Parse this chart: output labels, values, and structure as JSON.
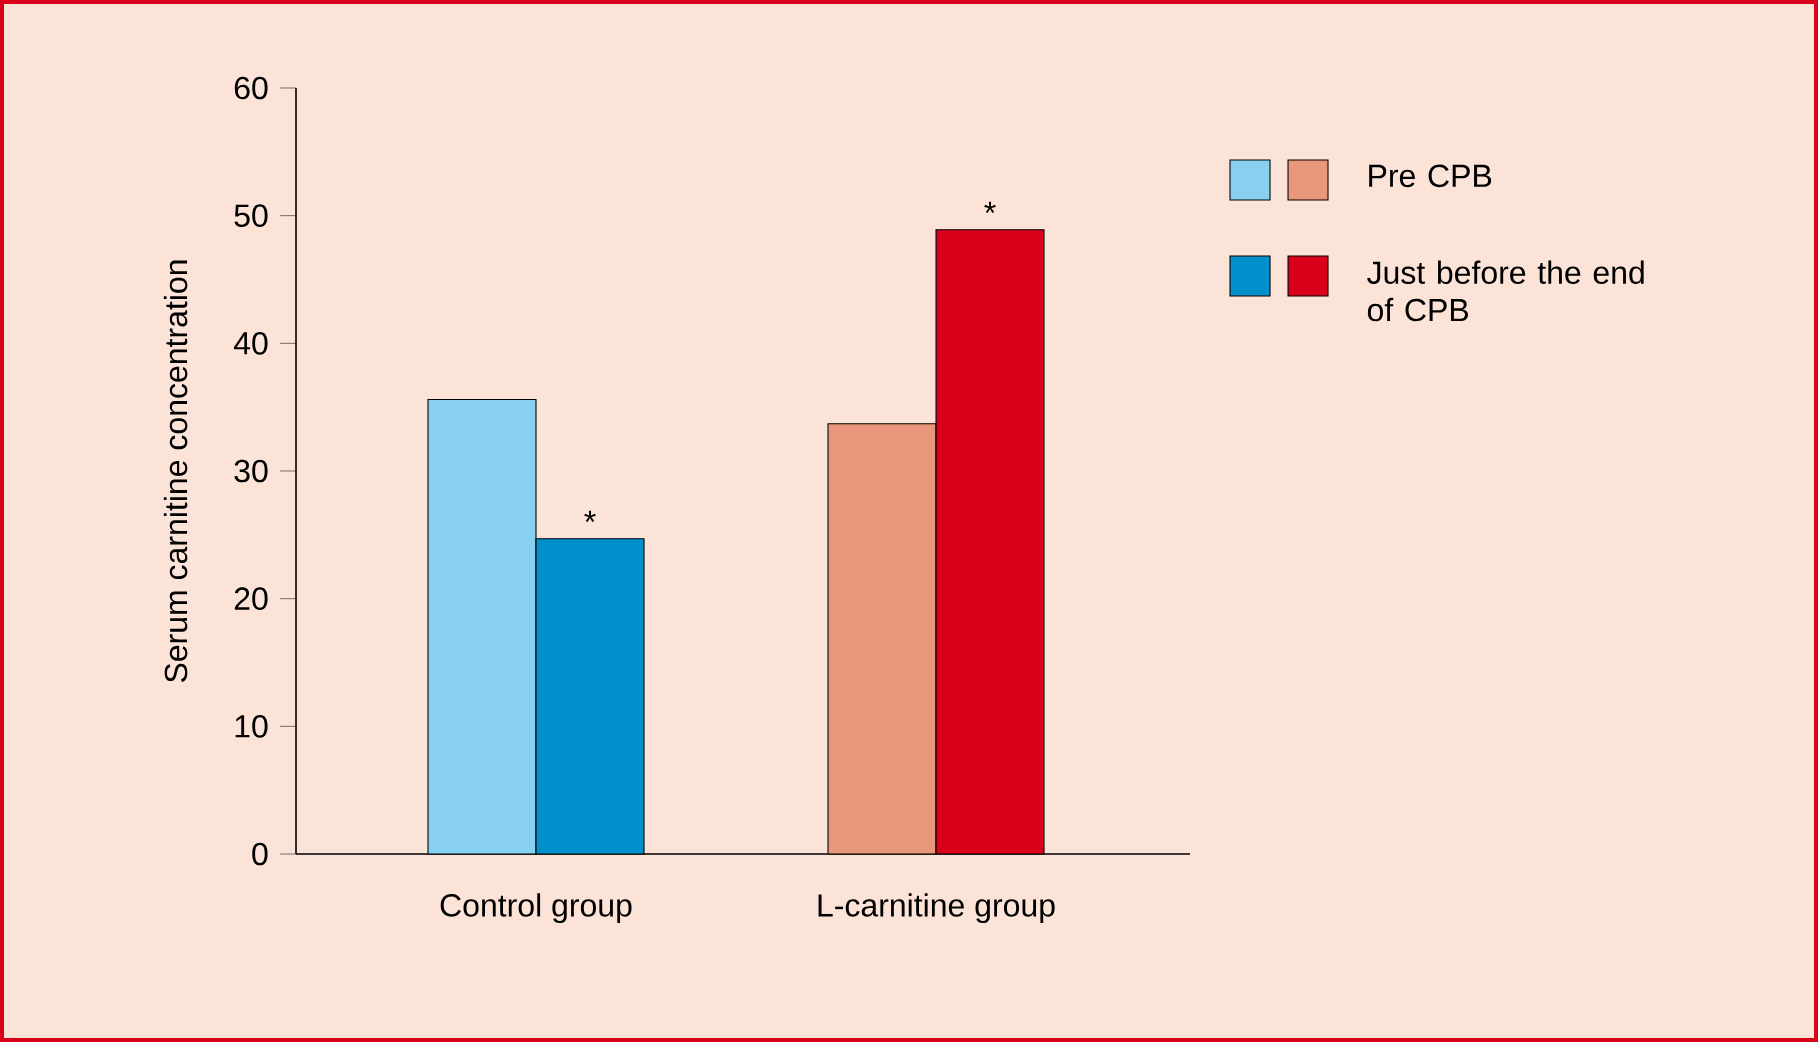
{
  "chart_data": {
    "type": "bar",
    "ylabel": "Serum carnitine concentration",
    "categories": [
      "Control group",
      "L-carnitine group"
    ],
    "series": [
      {
        "name": "Pre CPB",
        "colors": [
          "#87d0f0",
          "#e8977a"
        ],
        "values": [
          35.6,
          33.7
        ]
      },
      {
        "name": "Just before the end of CPB",
        "colors": [
          "#0090cc",
          "#d9001b"
        ],
        "values": [
          24.7,
          48.9
        ]
      }
    ],
    "ylim": [
      0,
      60
    ],
    "yticks": [
      0,
      10,
      20,
      30,
      40,
      50,
      60
    ],
    "grid": false,
    "legend": "right",
    "annotations": [
      {
        "text": "*",
        "x": "Control group",
        "y": 24.7
      },
      {
        "text": "*",
        "x": "L-carnitine group",
        "y": 48.9
      }
    ]
  }
}
